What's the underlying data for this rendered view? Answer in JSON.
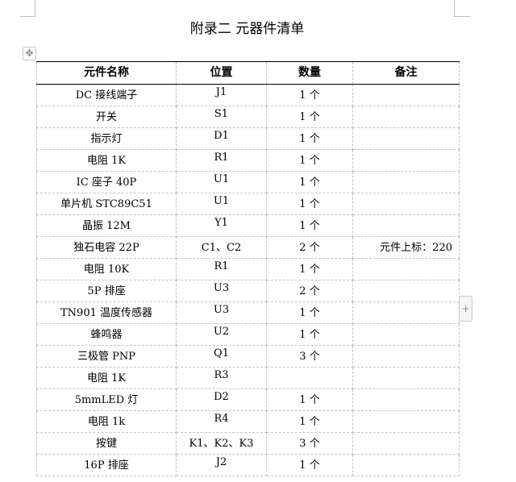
{
  "title": "附录二  元器件清单",
  "table": {
    "headers": [
      "元件名称",
      "位置",
      "数量",
      "备注"
    ],
    "rows": [
      [
        "DC 接线端子",
        "J1",
        "1 个",
        ""
      ],
      [
        "开关",
        "S1",
        "1 个",
        ""
      ],
      [
        "指示灯",
        "D1",
        "1 个",
        ""
      ],
      [
        "电阻 1K",
        "R1",
        "1 个",
        ""
      ],
      [
        "IC 座子 40P",
        "U1",
        "1 个",
        ""
      ],
      [
        "单片机 STC89C51",
        "U1",
        "1 个",
        ""
      ],
      [
        "晶振 12M",
        "Y1",
        "1 个",
        ""
      ],
      [
        "独石电容 22P",
        "C1、C2",
        "2 个",
        "元件上标：220"
      ],
      [
        "电阻  10K",
        "R1",
        "1 个",
        ""
      ],
      [
        "5P 排座",
        "U3",
        "2 个",
        ""
      ],
      [
        "TN901 温度传感器",
        "U3",
        "1 个",
        ""
      ],
      [
        "蜂鸣器",
        "U2",
        "1 个",
        ""
      ],
      [
        "三极管 PNP",
        "Q1",
        "3 个",
        ""
      ],
      [
        "电阻 1K",
        "R3",
        "",
        ""
      ],
      [
        "5mmLED 灯",
        "D2",
        "1 个",
        ""
      ],
      [
        "电阻 1k",
        "R4",
        "1 个",
        ""
      ],
      [
        "按键",
        "K1、K2、K3",
        "3 个",
        ""
      ],
      [
        "16P 排座",
        "J2",
        "1 个",
        ""
      ]
    ]
  },
  "icons": {
    "move": "move-icon",
    "add": "plus-icon"
  }
}
